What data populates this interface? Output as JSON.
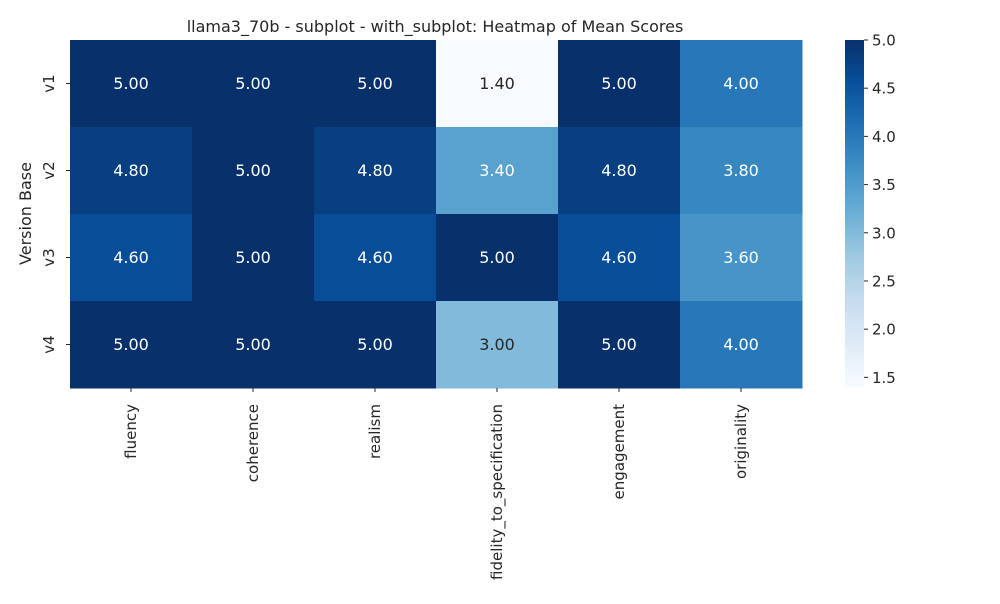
{
  "chart_data": {
    "type": "heatmap",
    "title": "llama3_70b - subplot - with_subplot: Heatmap of Mean Scores",
    "xlabel": "",
    "ylabel": "Version Base",
    "x_categories": [
      "fluency",
      "coherence",
      "realism",
      "fidelity_to_specification",
      "engagement",
      "originality"
    ],
    "y_categories": [
      "v1",
      "v2",
      "v3",
      "v4"
    ],
    "values": [
      [
        5.0,
        5.0,
        5.0,
        1.4,
        5.0,
        4.0
      ],
      [
        4.8,
        5.0,
        4.8,
        3.4,
        4.8,
        3.8
      ],
      [
        4.6,
        5.0,
        4.6,
        5.0,
        4.6,
        3.6
      ],
      [
        5.0,
        5.0,
        5.0,
        3.0,
        5.0,
        4.0
      ]
    ],
    "value_labels": [
      [
        "5.00",
        "5.00",
        "5.00",
        "1.40",
        "5.00",
        "4.00"
      ],
      [
        "4.80",
        "5.00",
        "4.80",
        "3.40",
        "4.80",
        "3.80"
      ],
      [
        "4.60",
        "5.00",
        "4.60",
        "5.00",
        "4.60",
        "3.60"
      ],
      [
        "5.00",
        "5.00",
        "5.00",
        "3.00",
        "5.00",
        "4.00"
      ]
    ],
    "colorbar": {
      "vmin": 1.4,
      "vmax": 5.0,
      "ticks": [
        1.5,
        2.0,
        2.5,
        3.0,
        3.5,
        4.0,
        4.5,
        5.0
      ],
      "tick_labels": [
        "1.5",
        "2.0",
        "2.5",
        "3.0",
        "3.5",
        "4.0",
        "4.5",
        "5.0"
      ]
    },
    "colormap": "Blues",
    "colors": {
      "colormap_stops": [
        "#f7fbff",
        "#deebf7",
        "#c6dbef",
        "#9ecae1",
        "#6baed6",
        "#4292c6",
        "#2171b5",
        "#08519c",
        "#08306b"
      ],
      "text_dark": "#262626",
      "text_light": "#ffffff"
    },
    "grid": false,
    "legend": "colorbar-right"
  }
}
